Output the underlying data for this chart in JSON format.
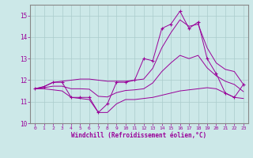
{
  "xlabel": "Windchill (Refroidissement éolien,°C)",
  "background_color": "#cce8e8",
  "grid_color": "#aacccc",
  "line_color": "#990099",
  "xlim": [
    -0.5,
    23.5
  ],
  "ylim": [
    10,
    15.5
  ],
  "yticks": [
    10,
    11,
    12,
    13,
    14,
    15
  ],
  "xticks": [
    0,
    1,
    2,
    3,
    4,
    5,
    6,
    7,
    8,
    9,
    10,
    11,
    12,
    13,
    14,
    15,
    16,
    17,
    18,
    19,
    20,
    21,
    22,
    23
  ],
  "hours": [
    0,
    1,
    2,
    3,
    4,
    5,
    6,
    7,
    8,
    9,
    10,
    11,
    12,
    13,
    14,
    15,
    16,
    17,
    18,
    19,
    20,
    21,
    22,
    23
  ],
  "temp_actual": [
    11.6,
    11.7,
    11.9,
    11.9,
    11.2,
    11.2,
    11.2,
    10.5,
    10.9,
    11.9,
    11.9,
    12.0,
    13.0,
    12.9,
    14.4,
    14.6,
    15.2,
    14.4,
    14.7,
    13.0,
    12.3,
    11.4,
    11.2,
    11.8
  ],
  "temp_min": [
    11.6,
    11.6,
    11.55,
    11.5,
    11.2,
    11.15,
    11.1,
    10.5,
    10.5,
    10.9,
    11.1,
    11.1,
    11.15,
    11.2,
    11.3,
    11.4,
    11.5,
    11.55,
    11.6,
    11.65,
    11.6,
    11.4,
    11.2,
    11.15
  ],
  "temp_max": [
    11.6,
    11.7,
    11.9,
    11.95,
    12.0,
    12.05,
    12.05,
    12.0,
    11.95,
    11.95,
    11.95,
    12.0,
    12.05,
    12.55,
    13.5,
    14.2,
    14.8,
    14.5,
    14.6,
    13.5,
    12.8,
    12.5,
    12.4,
    11.8
  ],
  "temp_mean": [
    11.6,
    11.65,
    11.72,
    11.72,
    11.6,
    11.6,
    11.58,
    11.25,
    11.22,
    11.42,
    11.52,
    11.55,
    11.6,
    11.87,
    12.4,
    12.8,
    13.15,
    13.0,
    13.15,
    12.57,
    12.2,
    11.95,
    11.8,
    11.47
  ]
}
